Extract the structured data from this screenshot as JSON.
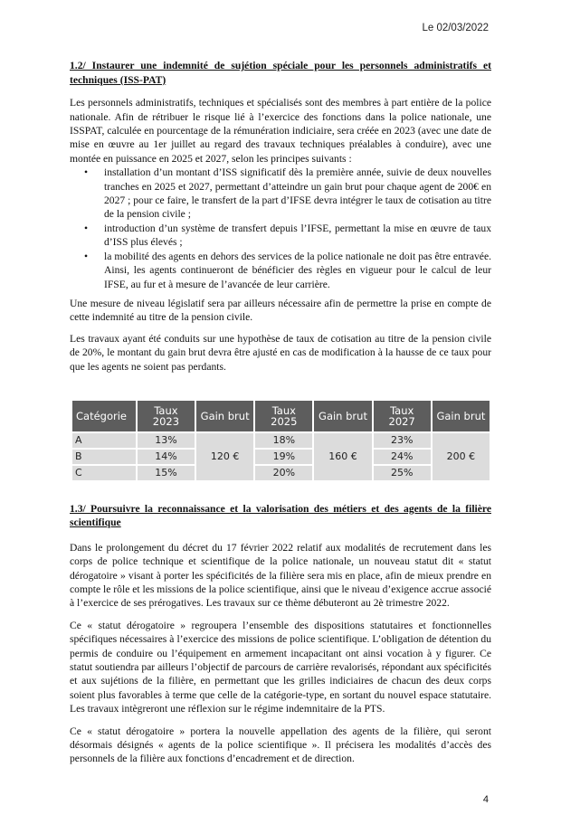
{
  "date": "Le 02/03/2022",
  "section1": {
    "heading": "1.2/ Instaurer une indemnité de sujétion spéciale pour les personnels administratifs et techniques (ISS-PAT)",
    "intro": "Les personnels administratifs, techniques et spécialisés sont des membres à part entière de la police nationale. Afin de rétribuer le risque lié à l’exercice des fonctions dans la police nationale, une ISSPAT, calculée en pourcentage de la rémunération indiciaire, sera créée en 2023 (avec une date de mise en œuvre au 1er juillet au regard des travaux techniques préalables à conduire), avec une montée en puissance en 2025 et 2027, selon les principes suivants :",
    "bullets": [
      "installation d’un montant d’ISS significatif dès la première année, suivie de deux nouvelles tranches en 2025 et 2027, permettant d’atteindre un gain brut pour chaque agent de 200€ en 2027 ; pour ce faire, le transfert de la part d’IFSE devra intégrer le taux de cotisation au titre de la pension civile ;",
      "introduction d’un système de transfert depuis l’IFSE, permettant la mise en œuvre de taux d’ISS plus élevés ;",
      "la mobilité des agents en dehors des services de la police nationale ne doit pas être entravée. Ainsi, les agents continueront de bénéficier des règles en vigueur pour le calcul de leur IFSE, au fur et à mesure de l’avancée de leur carrière."
    ],
    "para2": "Une mesure de niveau législatif sera par ailleurs nécessaire afin de permettre la prise en compte de cette indemnité au titre de la pension civile.",
    "para3": "Les travaux ayant été conduits sur une hypothèse de taux de cotisation au titre de la pension civile de 20%, le montant du gain brut devra être ajusté en cas de modification à la hausse de ce taux pour que les agents ne soient pas perdants."
  },
  "table": {
    "headers": [
      "Catégorie",
      "Taux 2023",
      "Gain brut",
      "Taux 2025",
      "Gain brut",
      "Taux 2027",
      "Gain brut"
    ],
    "rows": [
      {
        "cat": "A",
        "t2023": "13%",
        "t2025": "18%",
        "t2027": "23%"
      },
      {
        "cat": "B",
        "t2023": "14%",
        "t2025": "19%",
        "t2027": "24%"
      },
      {
        "cat": "C",
        "t2023": "15%",
        "t2025": "20%",
        "t2027": "25%"
      }
    ],
    "gain2023": "120 €",
    "gain2025": "160 €",
    "gain2027": "200 €"
  },
  "section2": {
    "heading": "1.3/ Poursuivre la reconnaissance et la valorisation des métiers et des agents de la filière scientifique",
    "para1": "Dans le prolongement du décret du 17 février 2022 relatif aux modalités de recrutement dans les corps de police technique et scientifique de la police nationale, un nouveau statut dit « statut dérogatoire » visant à porter les spécificités de la filière sera mis en place, afin de mieux prendre en compte le rôle et les missions de la police scientifique, ainsi que le niveau d’exigence accrue associé à l’exercice de ses prérogatives. Les travaux sur ce thème débuteront au 2è trimestre 2022.",
    "para2": "Ce « statut dérogatoire » regroupera l’ensemble des dispositions statutaires et fonctionnelles spécifiques nécessaires à l’exercice des missions de police scientifique. L’obligation de détention du permis de conduire ou l’équipement en armement incapacitant ont ainsi vocation à y figurer. Ce statut soutiendra par ailleurs l’objectif de parcours de carrière revalorisés, répondant aux spécificités et aux sujétions de la filière, en permettant que les grilles indiciaires de chacun des deux corps soient plus favorables à terme que celle de la catégorie-type, en sortant du nouvel espace statutaire. Les travaux intègreront une réflexion sur le régime indemnitaire de la PTS.",
    "para3": "Ce « statut dérogatoire » portera la nouvelle appellation des agents de la filière, qui seront désormais désignés « agents de la police scientifique ». Il précisera les modalités d’accès des personnels de la filière aux fonctions d’encadrement et de direction."
  },
  "page_number": "4"
}
